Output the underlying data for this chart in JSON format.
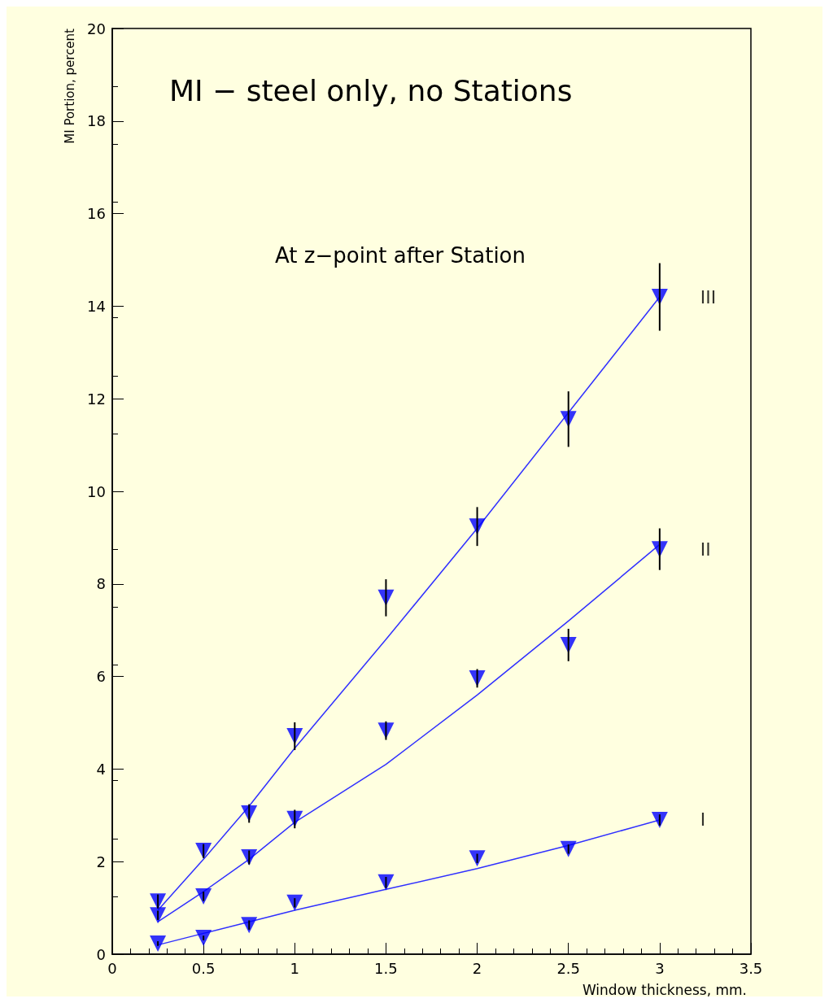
{
  "chart_data": {
    "type": "scatter",
    "title": "MI − steel only, no Stations",
    "xlabel": "Window thickness, mm.",
    "ylabel": "MI Portion, percent",
    "annotations": [
      "At z−point after Station"
    ],
    "x": [
      0.25,
      0.5,
      0.75,
      1,
      1.5,
      2,
      2.5,
      3
    ],
    "series": [
      {
        "name": "III",
        "color": "#0000ff",
        "values": [
          1.14,
          2.23,
          3.04,
          4.71,
          7.7,
          9.24,
          11.56,
          14.2
        ],
        "errors": [
          0.15,
          0.15,
          0.2,
          0.3,
          0.4,
          0.42,
          0.6,
          0.73
        ]
      },
      {
        "name": "II",
        "color": "#0000ff",
        "values": [
          0.84,
          1.25,
          2.09,
          2.92,
          4.83,
          5.96,
          6.68,
          8.75
        ],
        "errors": [
          0.1,
          0.1,
          0.15,
          0.2,
          0.2,
          0.2,
          0.35,
          0.45
        ]
      },
      {
        "name": "I",
        "color": "#0000ff",
        "values": [
          0.23,
          0.35,
          0.63,
          1.11,
          1.55,
          2.07,
          2.27,
          2.9
        ],
        "errors": [
          0.05,
          0.05,
          0.1,
          0.1,
          0.12,
          0.1,
          0.1,
          0.12
        ]
      },
      {
        "type": "line",
        "color": "#3030ff",
        "marker": "none",
        "values": [
          0.95,
          2.05,
          3.2,
          4.45,
          6.8,
          9.2,
          11.7,
          14.2
        ]
      },
      {
        "type": "line",
        "color": "#3030ff",
        "marker": "none",
        "values": [
          0.7,
          1.35,
          2.05,
          2.85,
          4.1,
          5.6,
          7.2,
          8.85
        ]
      },
      {
        "type": "line",
        "color": "#3030ff",
        "marker": "none",
        "values": [
          0.2,
          0.45,
          0.7,
          0.95,
          1.4,
          1.85,
          2.35,
          2.9
        ]
      }
    ],
    "marker": "triangle",
    "grid": false,
    "legend": false,
    "xlim": [
      0,
      3.5
    ],
    "xticks": [
      0,
      0.5,
      1,
      1.5,
      2,
      2.5,
      3,
      3.5
    ],
    "ylim": [
      0,
      20
    ],
    "yticks": [
      0,
      2,
      4,
      6,
      8,
      10,
      12,
      14,
      16,
      18,
      20
    ]
  }
}
